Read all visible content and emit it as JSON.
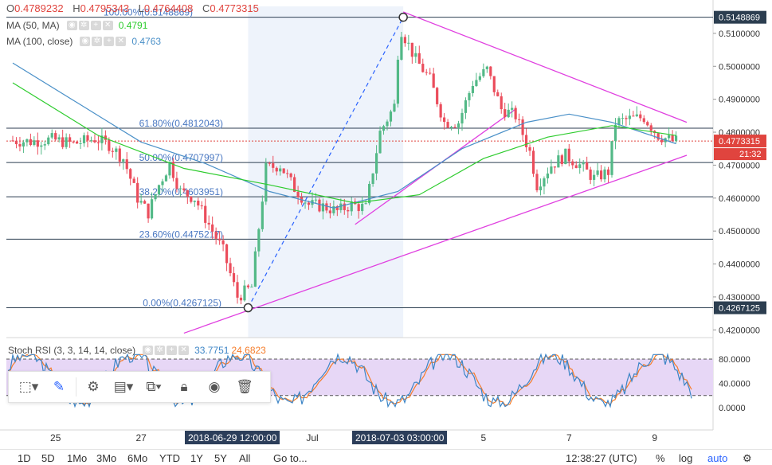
{
  "header": {
    "open_label": "O",
    "open": "0.4789232",
    "high_label": "H",
    "high": "0.4795343",
    "low_label": "L",
    "low": "0.4764408",
    "close_label": "C",
    "close": "0.4773315"
  },
  "indicators": {
    "ma50_label": "MA (50, MA)",
    "ma50_value": "0.4791",
    "ma100_label": "MA (100, close)",
    "ma100_value": "0.4763",
    "stoch_label": "Stoch RSI (3, 3, 14, 14, close)",
    "stoch_k": "33.7751",
    "stoch_d": "24.6823"
  },
  "price_axis": {
    "ticks": [
      "0.5100000",
      "0.5000000",
      "0.4900000",
      "0.4800000",
      "0.4700000",
      "0.4600000",
      "0.4500000",
      "0.4400000",
      "0.4300000",
      "0.4200000"
    ],
    "tag_high": "0.5148869",
    "tag_last": "0.4773315",
    "tag_countdown": "21:32",
    "tag_low": "0.4267125"
  },
  "stoch_axis": {
    "ticks": [
      "80.0000",
      "40.0000",
      "0.0000"
    ]
  },
  "time_axis": {
    "labels": [
      "25",
      "27",
      "Jul",
      "5",
      "7",
      "9"
    ],
    "tag_start": "2018-06-29 12:00:00",
    "tag_end": "2018-07-03 03:00:00"
  },
  "fib_labels": [
    "100.00%(0.5148869)",
    "61.80%(0.4812043)",
    "50.00%(0.4707997)",
    "38.20%(0.4603951)",
    "23.60%(0.4475217)",
    "0.00%(0.4267125)"
  ],
  "bottom_bar": {
    "ranges": [
      "1D",
      "5D",
      "1Mo",
      "3Mo",
      "6Mo",
      "YTD",
      "1Y",
      "5Y",
      "All"
    ],
    "goto": "Go to...",
    "time": "12:38:27 (UTC)",
    "percent": "%",
    "log": "log",
    "auto": "auto"
  },
  "colors": {
    "up": "#53b987",
    "down": "#eb4d5c",
    "ma50": "#2ecc2e",
    "ma100": "#4a90c8",
    "fib": "#2c3e50",
    "trend": "#e040e0",
    "stoch_k": "#3d85c6",
    "stoch_d": "#f57c2a"
  },
  "chart_data": {
    "type": "candlestick",
    "title": "",
    "x_range": [
      "2018-06-24",
      "2018-07-09"
    ],
    "ylim": [
      0.418,
      0.5165
    ],
    "fib_levels": [
      {
        "ratio": "100.00%",
        "price": 0.5148869
      },
      {
        "ratio": "61.80%",
        "price": 0.4812043
      },
      {
        "ratio": "50.00%",
        "price": 0.4707997
      },
      {
        "ratio": "38.20%",
        "price": 0.4603951
      },
      {
        "ratio": "23.60%",
        "price": 0.4475217
      },
      {
        "ratio": "0.00%",
        "price": 0.4267125
      }
    ],
    "close_path": [
      [
        "2018-06-24 00:00",
        0.4775
      ],
      [
        "2018-06-24 12:00",
        0.4772
      ],
      [
        "2018-06-25 00:00",
        0.4778
      ],
      [
        "2018-06-25 12:00",
        0.4765
      ],
      [
        "2018-06-26 00:00",
        0.478
      ],
      [
        "2018-06-26 08:00",
        0.4762
      ],
      [
        "2018-06-26 16:00",
        0.472
      ],
      [
        "2018-06-27 00:00",
        0.46
      ],
      [
        "2018-06-27 06:00",
        0.4555
      ],
      [
        "2018-06-27 12:00",
        0.464
      ],
      [
        "2018-06-27 18:00",
        0.4705
      ],
      [
        "2018-06-28 00:00",
        0.462
      ],
      [
        "2018-06-28 08:00",
        0.46
      ],
      [
        "2018-06-28 16:00",
        0.452
      ],
      [
        "2018-06-29 00:00",
        0.444
      ],
      [
        "2018-06-29 08:00",
        0.43
      ],
      [
        "2018-06-29 16:00",
        0.433
      ],
      [
        "2018-06-30 00:00",
        0.469
      ],
      [
        "2018-06-30 08:00",
        0.47
      ],
      [
        "2018-06-30 16:00",
        0.463
      ],
      [
        "2018-07-01 00:00",
        0.458
      ],
      [
        "2018-07-01 08:00",
        0.4575
      ],
      [
        "2018-07-01 16:00",
        0.456
      ],
      [
        "2018-07-02 00:00",
        0.458
      ],
      [
        "2018-07-02 08:00",
        0.457
      ],
      [
        "2018-07-02 16:00",
        0.48
      ],
      [
        "2018-07-03 00:00",
        0.488
      ],
      [
        "2018-07-03 03:00",
        0.512
      ],
      [
        "2018-07-03 12:00",
        0.502
      ],
      [
        "2018-07-03 20:00",
        0.496
      ],
      [
        "2018-07-04 04:00",
        0.483
      ],
      [
        "2018-07-04 12:00",
        0.483
      ],
      [
        "2018-07-04 20:00",
        0.495
      ],
      [
        "2018-07-05 04:00",
        0.499
      ],
      [
        "2018-07-05 12:00",
        0.487
      ],
      [
        "2018-07-05 20:00",
        0.485
      ],
      [
        "2018-07-06 04:00",
        0.474
      ],
      [
        "2018-07-06 08:00",
        0.464
      ],
      [
        "2018-07-06 16:00",
        0.47
      ],
      [
        "2018-07-07 00:00",
        0.473
      ],
      [
        "2018-07-07 08:00",
        0.47
      ],
      [
        "2018-07-07 16:00",
        0.466
      ],
      [
        "2018-07-08 00:00",
        0.468
      ],
      [
        "2018-07-08 04:00",
        0.483
      ],
      [
        "2018-07-08 12:00",
        0.484
      ],
      [
        "2018-07-08 20:00",
        0.4845
      ],
      [
        "2018-07-09 04:00",
        0.479
      ],
      [
        "2018-07-09 12:00",
        0.4773
      ]
    ],
    "ma50_path": [
      [
        "2018-06-24 00:00",
        0.495
      ],
      [
        "2018-06-26 00:00",
        0.479
      ],
      [
        "2018-06-28 00:00",
        0.469
      ],
      [
        "2018-06-30 00:00",
        0.464
      ],
      [
        "2018-07-02 00:00",
        0.4585
      ],
      [
        "2018-07-03 12:00",
        0.461
      ],
      [
        "2018-07-05 00:00",
        0.472
      ],
      [
        "2018-07-06 12:00",
        0.4785
      ],
      [
        "2018-07-08 00:00",
        0.482
      ],
      [
        "2018-07-09 12:00",
        0.479
      ]
    ],
    "ma100_path": [
      [
        "2018-06-24 00:00",
        0.501
      ],
      [
        "2018-06-25 12:00",
        0.489
      ],
      [
        "2018-06-27 00:00",
        0.477
      ],
      [
        "2018-06-28 12:00",
        0.4705
      ],
      [
        "2018-06-30 00:00",
        0.462
      ],
      [
        "2018-07-01 12:00",
        0.457
      ],
      [
        "2018-07-03 00:00",
        0.462
      ],
      [
        "2018-07-04 12:00",
        0.475
      ],
      [
        "2018-07-06 00:00",
        0.483
      ],
      [
        "2018-07-07 00:00",
        0.4855
      ],
      [
        "2018-07-08 00:00",
        0.483
      ],
      [
        "2018-07-09 12:00",
        0.4765
      ]
    ],
    "trendlines": [
      {
        "from": [
          "2018-07-03 03:00",
          0.5165
        ],
        "to": [
          "2018-07-09 18:00",
          0.483
        ]
      },
      {
        "from": [
          "2018-06-28 00:00",
          0.419
        ],
        "to": [
          "2018-07-09 18:00",
          0.473
        ]
      },
      {
        "from": [
          "2018-07-02 00:00",
          0.452
        ],
        "to": [
          "2018-07-05 18:00",
          0.487
        ]
      }
    ],
    "fib_anchor_line": {
      "from": [
        "2018-06-29 12:00",
        0.4267125
      ],
      "to": [
        "2018-07-03 03:00",
        0.5148869
      ]
    },
    "stoch_rsi": {
      "ylim": [
        0,
        80
      ],
      "bands": [
        20,
        80
      ],
      "k_last": 33.7751,
      "d_last": 24.6823
    }
  }
}
